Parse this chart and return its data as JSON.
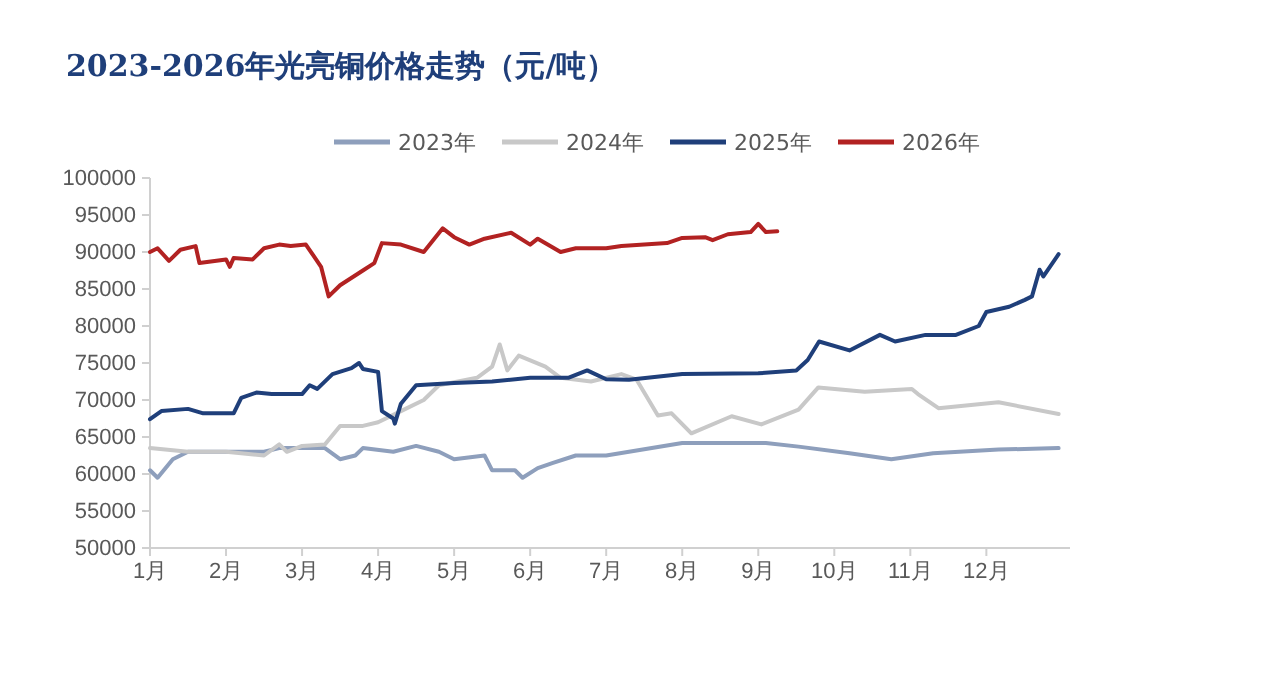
{
  "chart_data": {
    "type": "line",
    "title": "2023-2026年光亮铜价格走势（元/吨）",
    "xlim": [
      1,
      13.1
    ],
    "xticks": [
      {
        "value": 1,
        "label": "1月"
      },
      {
        "value": 2,
        "label": "2月"
      },
      {
        "value": 3,
        "label": "3月"
      },
      {
        "value": 4,
        "label": "4月"
      },
      {
        "value": 5,
        "label": "5月"
      },
      {
        "value": 6,
        "label": "6月"
      },
      {
        "value": 7,
        "label": "7月"
      },
      {
        "value": 8,
        "label": "8月"
      },
      {
        "value": 9,
        "label": "9月"
      },
      {
        "value": 10,
        "label": "10月"
      },
      {
        "value": 11,
        "label": "11月"
      },
      {
        "value": 12,
        "label": "12月"
      }
    ],
    "ylim": [
      50000,
      100000
    ],
    "yticks": [
      50000,
      55000,
      60000,
      65000,
      70000,
      75000,
      80000,
      85000,
      90000,
      95000,
      100000
    ],
    "grid": false,
    "legend": "top",
    "marker": "none",
    "line_style": "solid",
    "series": [
      {
        "name": "2023年",
        "color": "#8e9fbc",
        "x": [
          1,
          1.1,
          1.3,
          1.5,
          2,
          2.5,
          2.7,
          3,
          3.3,
          3.5,
          3.7,
          3.8,
          4.2,
          4.5,
          4.8,
          5,
          5.4,
          5.5,
          5.8,
          5.9,
          6.1,
          6.3,
          6.6,
          7,
          8,
          9.1,
          9.53,
          10.2,
          10.75,
          11.3,
          12.16,
          12.95
        ],
        "values": [
          60500,
          59500,
          62000,
          63000,
          63000,
          63000,
          63500,
          63500,
          63500,
          62000,
          62500,
          63500,
          63000,
          63800,
          63000,
          62000,
          62500,
          60500,
          60500,
          59500,
          60800,
          61500,
          62500,
          62500,
          64200,
          64200,
          63700,
          62800,
          62000,
          62800,
          63300,
          63500
        ]
      },
      {
        "name": "2024年",
        "color": "#c8c8c8",
        "x": [
          1,
          1.5,
          2,
          2.5,
          2.7,
          2.8,
          3,
          3.3,
          3.5,
          3.8,
          4,
          4.3,
          4.6,
          4.8,
          5.3,
          5.5,
          5.6,
          5.7,
          5.85,
          6.2,
          6.4,
          6.8,
          7.2,
          7.4,
          7.68,
          7.86,
          8.12,
          8.65,
          9.04,
          9.53,
          9.79,
          10.4,
          11.02,
          11.1,
          11.37,
          12.16,
          12.95
        ],
        "values": [
          63500,
          63000,
          63000,
          62500,
          64000,
          63000,
          63800,
          64000,
          66500,
          66500,
          67000,
          68500,
          70000,
          72000,
          73000,
          74500,
          77500,
          74000,
          76000,
          74500,
          73000,
          72500,
          73500,
          72750,
          67900,
          68200,
          65500,
          67800,
          66700,
          68700,
          71700,
          71100,
          71500,
          70800,
          68900,
          69700,
          68100
        ]
      },
      {
        "name": "2025年",
        "color": "#1f3f7a",
        "x": [
          1,
          1.15,
          1.5,
          1.7,
          2.1,
          2.2,
          2.4,
          2.6,
          3,
          3.1,
          3.2,
          3.4,
          3.65,
          3.75,
          3.8,
          4,
          4.05,
          4.2,
          4.22,
          4.3,
          4.5,
          5,
          5.5,
          6,
          6.5,
          6.75,
          7,
          7.3,
          8,
          9,
          9.5,
          9.65,
          9.8,
          10.2,
          10.6,
          10.8,
          11.2,
          11.6,
          11.9,
          12,
          12.3,
          12.5,
          12.6,
          12.7,
          12.75,
          12.95
        ],
        "values": [
          67400,
          68500,
          68800,
          68200,
          68200,
          70300,
          71000,
          70800,
          70800,
          72000,
          71500,
          73500,
          74300,
          75000,
          74200,
          73800,
          68500,
          67500,
          66800,
          69500,
          72000,
          72300,
          72500,
          73000,
          73000,
          74000,
          72800,
          72750,
          73500,
          73600,
          74000,
          75400,
          77900,
          76700,
          78800,
          77900,
          78800,
          78800,
          80000,
          81900,
          82600,
          83500,
          84000,
          87600,
          86700,
          89700
        ]
      },
      {
        "name": "2026年",
        "color": "#b22222",
        "x": [
          1,
          1.1,
          1.25,
          1.4,
          1.6,
          1.65,
          2,
          2.05,
          2.1,
          2.35,
          2.5,
          2.7,
          2.85,
          3.05,
          3.15,
          3.25,
          3.35,
          3.5,
          3.8,
          3.95,
          4.05,
          4.3,
          4.6,
          4.85,
          5,
          5.2,
          5.4,
          5.75,
          6,
          6.1,
          6.4,
          6.6,
          7,
          7.2,
          7.5,
          7.8,
          8,
          8.3,
          8.4,
          8.6,
          8.9,
          9,
          9.1,
          9.25
        ],
        "values": [
          90000,
          90500,
          88800,
          90300,
          90800,
          88500,
          89000,
          88000,
          89200,
          89000,
          90500,
          91000,
          90800,
          91000,
          89500,
          88000,
          84000,
          85500,
          87500,
          88500,
          91200,
          91000,
          90000,
          93200,
          92000,
          91000,
          91800,
          92600,
          91000,
          91800,
          90000,
          90500,
          90500,
          90800,
          91000,
          91200,
          91900,
          92000,
          91600,
          92400,
          92700,
          93800,
          92700,
          92800
        ]
      }
    ]
  }
}
